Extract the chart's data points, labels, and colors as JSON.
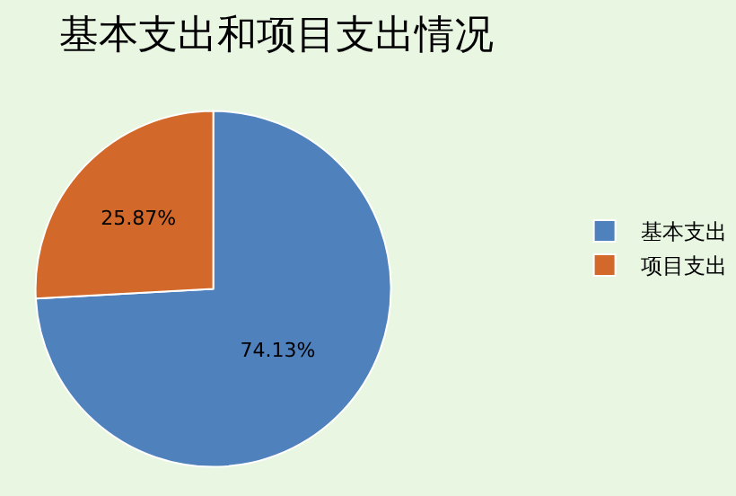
{
  "chart_data": {
    "type": "pie",
    "title": "基本支出和项目支出情况",
    "categories": [
      "基本支出",
      "项目支出"
    ],
    "values": [
      74.13,
      25.87
    ],
    "colors": [
      "#4f81bd",
      "#d2692a"
    ],
    "value_labels": [
      "74.13%",
      "25.87%"
    ],
    "legend": "right"
  }
}
